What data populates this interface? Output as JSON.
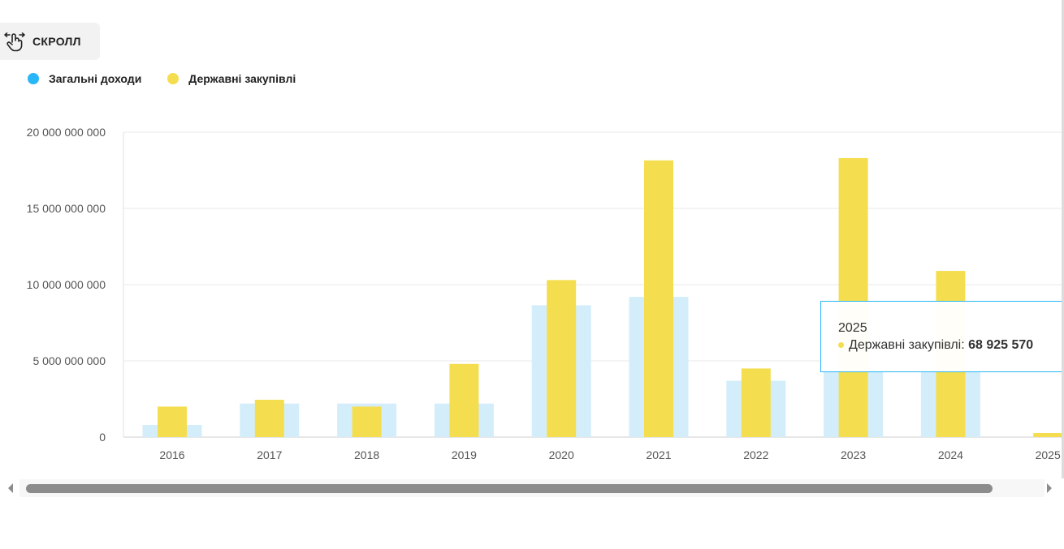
{
  "scroll_button": {
    "label": "СКРОЛЛ",
    "icon": "hand-swipe-icon"
  },
  "legend": [
    {
      "label": "Загальні доходи",
      "color": "#29b6f6"
    },
    {
      "label": "Державні закупівлі",
      "color": "#f4de4f"
    }
  ],
  "tooltip": {
    "title": "2025",
    "series_label": "Державні закупівлі:",
    "value": "68 925 570",
    "dot_color": "#f4de4f"
  },
  "chart_data": {
    "type": "bar",
    "categories": [
      "2016",
      "2017",
      "2018",
      "2019",
      "2020",
      "2021",
      "2022",
      "2023",
      "2024",
      "2025"
    ],
    "ylim": [
      0,
      20000000000
    ],
    "yticks": [
      0,
      5000000000,
      10000000000,
      15000000000,
      20000000000
    ],
    "ytick_labels": [
      "0",
      "5 000 000 000",
      "10 000 000 000",
      "15 000 000 000",
      "20 000 000 000"
    ],
    "grid": true,
    "legend_position": "top-left",
    "series": [
      {
        "name": "Загальні доходи",
        "color": "#d3eefa",
        "values": [
          800000000,
          2200000000,
          2200000000,
          2200000000,
          8650000000,
          9200000000,
          3700000000,
          4500000000,
          4500000000,
          0
        ]
      },
      {
        "name": "Державні закупівлі",
        "color": "#f4de4f",
        "values": [
          2000000000,
          2450000000,
          2000000000,
          4800000000,
          10300000000,
          18150000000,
          4500000000,
          18300000000,
          10900000000,
          68925570
        ]
      }
    ]
  }
}
